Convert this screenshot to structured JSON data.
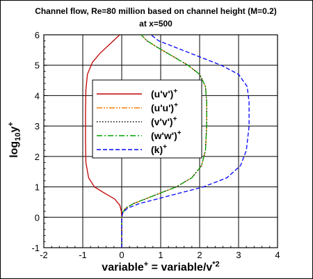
{
  "chart_data": {
    "type": "line",
    "title": "Channel flow, Re=80 million based on channel height (M=0.2)",
    "subtitle": "at x=500",
    "xlabel": "variable+ = variable/v*2",
    "ylabel": "log10y+",
    "xlim": [
      -2,
      4
    ],
    "ylim": [
      -1,
      6
    ],
    "xticks": [
      "-2",
      "-1",
      "0",
      "1",
      "2",
      "3",
      "4"
    ],
    "yticks": [
      "-1",
      "0",
      "1",
      "2",
      "3",
      "4",
      "5",
      "6"
    ],
    "grid": true,
    "legend_position": "center-left",
    "series": [
      {
        "name": "(u'v')+",
        "color": "#c00000",
        "dash": "solid",
        "points": [
          [
            0,
            -1
          ],
          [
            0,
            0
          ],
          [
            -0.01,
            0.2
          ],
          [
            -0.05,
            0.4
          ],
          [
            -0.18,
            0.6
          ],
          [
            -0.45,
            0.8
          ],
          [
            -0.7,
            1.0
          ],
          [
            -0.85,
            1.3
          ],
          [
            -0.92,
            1.8
          ],
          [
            -0.93,
            2.5
          ],
          [
            -0.93,
            3.5
          ],
          [
            -0.92,
            4.2
          ],
          [
            -0.88,
            4.7
          ],
          [
            -0.75,
            5.1
          ],
          [
            -0.55,
            5.4
          ],
          [
            -0.3,
            5.7
          ],
          [
            -0.05,
            6.0
          ]
        ]
      },
      {
        "name": "(u'u')+",
        "color": "#ff7f00",
        "dash": "dashdotdot",
        "points": [
          [
            0,
            -1
          ],
          [
            0,
            0
          ],
          [
            0.02,
            0.15
          ],
          [
            0.1,
            0.3
          ],
          [
            0.3,
            0.45
          ],
          [
            0.6,
            0.6
          ],
          [
            1.0,
            0.8
          ],
          [
            1.4,
            1.0
          ],
          [
            1.8,
            1.3
          ],
          [
            2.05,
            1.7
          ],
          [
            2.15,
            2.2
          ],
          [
            2.18,
            3.0
          ],
          [
            2.18,
            3.8
          ],
          [
            2.15,
            4.3
          ],
          [
            2.0,
            4.7
          ],
          [
            1.7,
            5.0
          ],
          [
            1.3,
            5.3
          ],
          [
            0.9,
            5.6
          ],
          [
            0.65,
            5.8
          ],
          [
            0.5,
            6.0
          ]
        ]
      },
      {
        "name": "(v'v')+",
        "color": "#000000",
        "dash": "dotted",
        "points": [
          [
            0,
            -1
          ],
          [
            0,
            0
          ],
          [
            0.02,
            0.15
          ],
          [
            0.1,
            0.3
          ],
          [
            0.3,
            0.45
          ],
          [
            0.6,
            0.6
          ],
          [
            1.0,
            0.8
          ],
          [
            1.4,
            1.0
          ],
          [
            1.8,
            1.3
          ],
          [
            2.05,
            1.7
          ],
          [
            2.15,
            2.2
          ],
          [
            2.18,
            3.0
          ],
          [
            2.18,
            3.8
          ],
          [
            2.15,
            4.3
          ],
          [
            2.0,
            4.7
          ],
          [
            1.7,
            5.0
          ],
          [
            1.3,
            5.3
          ],
          [
            0.9,
            5.6
          ],
          [
            0.65,
            5.8
          ],
          [
            0.5,
            6.0
          ]
        ]
      },
      {
        "name": "(w'w')+",
        "color": "#00a000",
        "dash": "dashdot",
        "points": [
          [
            0,
            -1
          ],
          [
            0,
            0
          ],
          [
            0.02,
            0.15
          ],
          [
            0.1,
            0.3
          ],
          [
            0.3,
            0.45
          ],
          [
            0.6,
            0.6
          ],
          [
            1.0,
            0.8
          ],
          [
            1.4,
            1.0
          ],
          [
            1.8,
            1.3
          ],
          [
            2.05,
            1.7
          ],
          [
            2.15,
            2.2
          ],
          [
            2.18,
            3.0
          ],
          [
            2.18,
            3.8
          ],
          [
            2.15,
            4.3
          ],
          [
            2.0,
            4.7
          ],
          [
            1.7,
            5.0
          ],
          [
            1.3,
            5.3
          ],
          [
            0.9,
            5.6
          ],
          [
            0.65,
            5.8
          ],
          [
            0.5,
            6.0
          ]
        ]
      },
      {
        "name": "(k)+",
        "color": "#0000ff",
        "dash": "dashed",
        "points": [
          [
            0,
            -1
          ],
          [
            0,
            0
          ],
          [
            0.03,
            0.15
          ],
          [
            0.15,
            0.3
          ],
          [
            0.45,
            0.45
          ],
          [
            0.9,
            0.6
          ],
          [
            1.5,
            0.8
          ],
          [
            2.1,
            1.0
          ],
          [
            2.7,
            1.3
          ],
          [
            3.05,
            1.7
          ],
          [
            3.2,
            2.2
          ],
          [
            3.27,
            3.0
          ],
          [
            3.27,
            3.8
          ],
          [
            3.22,
            4.3
          ],
          [
            3.0,
            4.7
          ],
          [
            2.55,
            5.0
          ],
          [
            1.95,
            5.3
          ],
          [
            1.35,
            5.6
          ],
          [
            0.95,
            5.8
          ],
          [
            0.75,
            6.0
          ]
        ]
      }
    ]
  }
}
